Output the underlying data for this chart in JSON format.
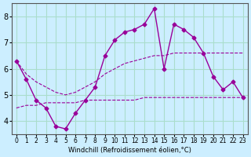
{
  "xlabel": "Windchill (Refroidissement éolien,°C)",
  "background_color": "#cceeff",
  "grid_color": "#aaddcc",
  "line_color": "#990099",
  "x_hours": [
    0,
    1,
    2,
    3,
    4,
    5,
    6,
    7,
    8,
    9,
    10,
    11,
    12,
    13,
    14,
    15,
    16,
    17,
    18,
    19,
    20,
    21,
    22,
    23
  ],
  "y_temp": [
    6.3,
    5.6,
    4.8,
    4.5,
    3.8,
    3.7,
    4.3,
    4.8,
    5.3,
    6.5,
    7.1,
    7.4,
    7.5,
    7.7,
    8.3,
    6.0,
    7.7,
    7.5,
    7.2,
    6.6,
    5.7,
    5.2,
    5.5,
    4.9
  ],
  "y_upper": [
    6.3,
    5.8,
    5.5,
    5.3,
    5.1,
    5.0,
    5.1,
    5.3,
    5.5,
    5.8,
    6.0,
    6.2,
    6.3,
    6.4,
    6.5,
    6.5,
    6.6,
    6.6,
    6.6,
    6.6,
    6.6,
    6.6,
    6.6,
    6.6
  ],
  "y_lower": [
    4.5,
    4.6,
    4.6,
    4.7,
    4.7,
    4.7,
    4.7,
    4.8,
    4.8,
    4.8,
    4.8,
    4.8,
    4.8,
    4.9,
    4.9,
    4.9,
    4.9,
    4.9,
    4.9,
    4.9,
    4.9,
    4.9,
    4.9,
    4.9
  ],
  "ylim": [
    3.5,
    8.5
  ],
  "yticks": [
    4,
    5,
    6,
    7,
    8
  ],
  "xtick_labels": [
    "0",
    "1",
    "2",
    "3",
    "4",
    "5",
    "6",
    "7",
    "8",
    "9",
    "10",
    "11",
    "12",
    "13",
    "14",
    "15",
    "16",
    "17",
    "18",
    "19",
    "20",
    "21",
    "22",
    "23"
  ]
}
